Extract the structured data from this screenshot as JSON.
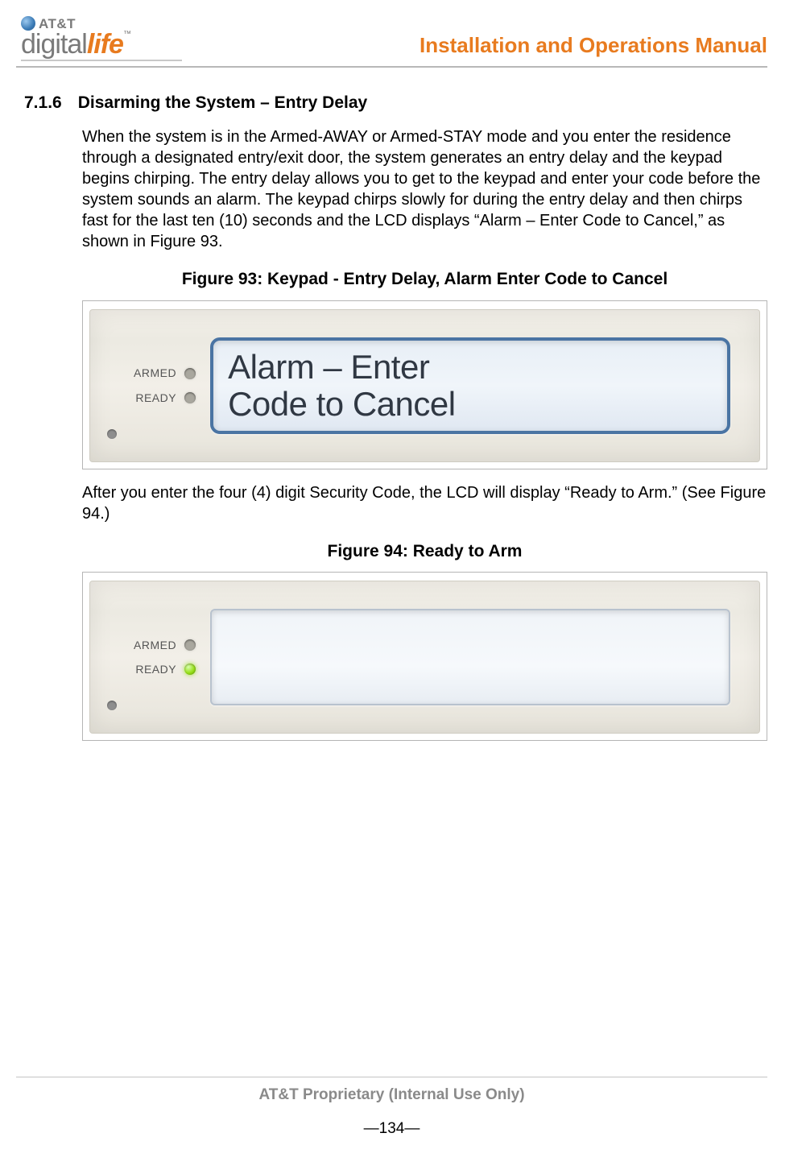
{
  "header": {
    "brand_top": "AT&T",
    "brand_bottom_left": "digital",
    "brand_bottom_right": "life",
    "manual_title": "Installation and Operations Manual"
  },
  "section": {
    "number": "7.1.6",
    "title": "Disarming the  System – Entry Delay"
  },
  "paragraphs": {
    "p1": "When the system is in the Armed-AWAY or Armed-STAY mode and you enter the residence through a designated entry/exit door, the system generates an entry delay and the keypad begins chirping. The entry delay allows you to get to the keypad and enter your code before the system sounds an alarm. The keypad chirps slowly for during the entry delay and then chirps fast for the last ten (10) seconds and the LCD displays “Alarm – Enter Code to Cancel,” as shown in Figure 93.",
    "p2": "After you enter the four (4) digit Security Code, the LCD will display “Ready to Arm.” (See Figure 94.)"
  },
  "figures": {
    "fig93": {
      "caption": "Figure 93:  Keypad - Entry Delay, Alarm Enter Code to Cancel",
      "armed_label": "ARMED",
      "ready_label": "READY",
      "armed_led_color": "#a9a79e",
      "ready_led_color": "#a9a79e",
      "lcd_line1": "Alarm – Enter",
      "lcd_line2": "Code to Cancel",
      "lcd_border_color": "#4a74a3",
      "bezel_color": "#f0ede5"
    },
    "fig94": {
      "caption": "Figure 94: Ready to Arm",
      "armed_label": "ARMED",
      "ready_label": "READY",
      "armed_led_color": "#a9a79e",
      "ready_led_color": "#98e01a",
      "lcd_line1": "",
      "lcd_line2": "",
      "lcd_border_color": "#b8c2ce",
      "bezel_color": "#f0ede5"
    }
  },
  "footer": {
    "proprietary": "AT&T Proprietary (Internal Use Only)",
    "page": "—134—"
  },
  "colors": {
    "accent_orange": "#e87b1f",
    "text_gray": "#7a7a7a",
    "rule_gray": "#b8b8b8"
  }
}
